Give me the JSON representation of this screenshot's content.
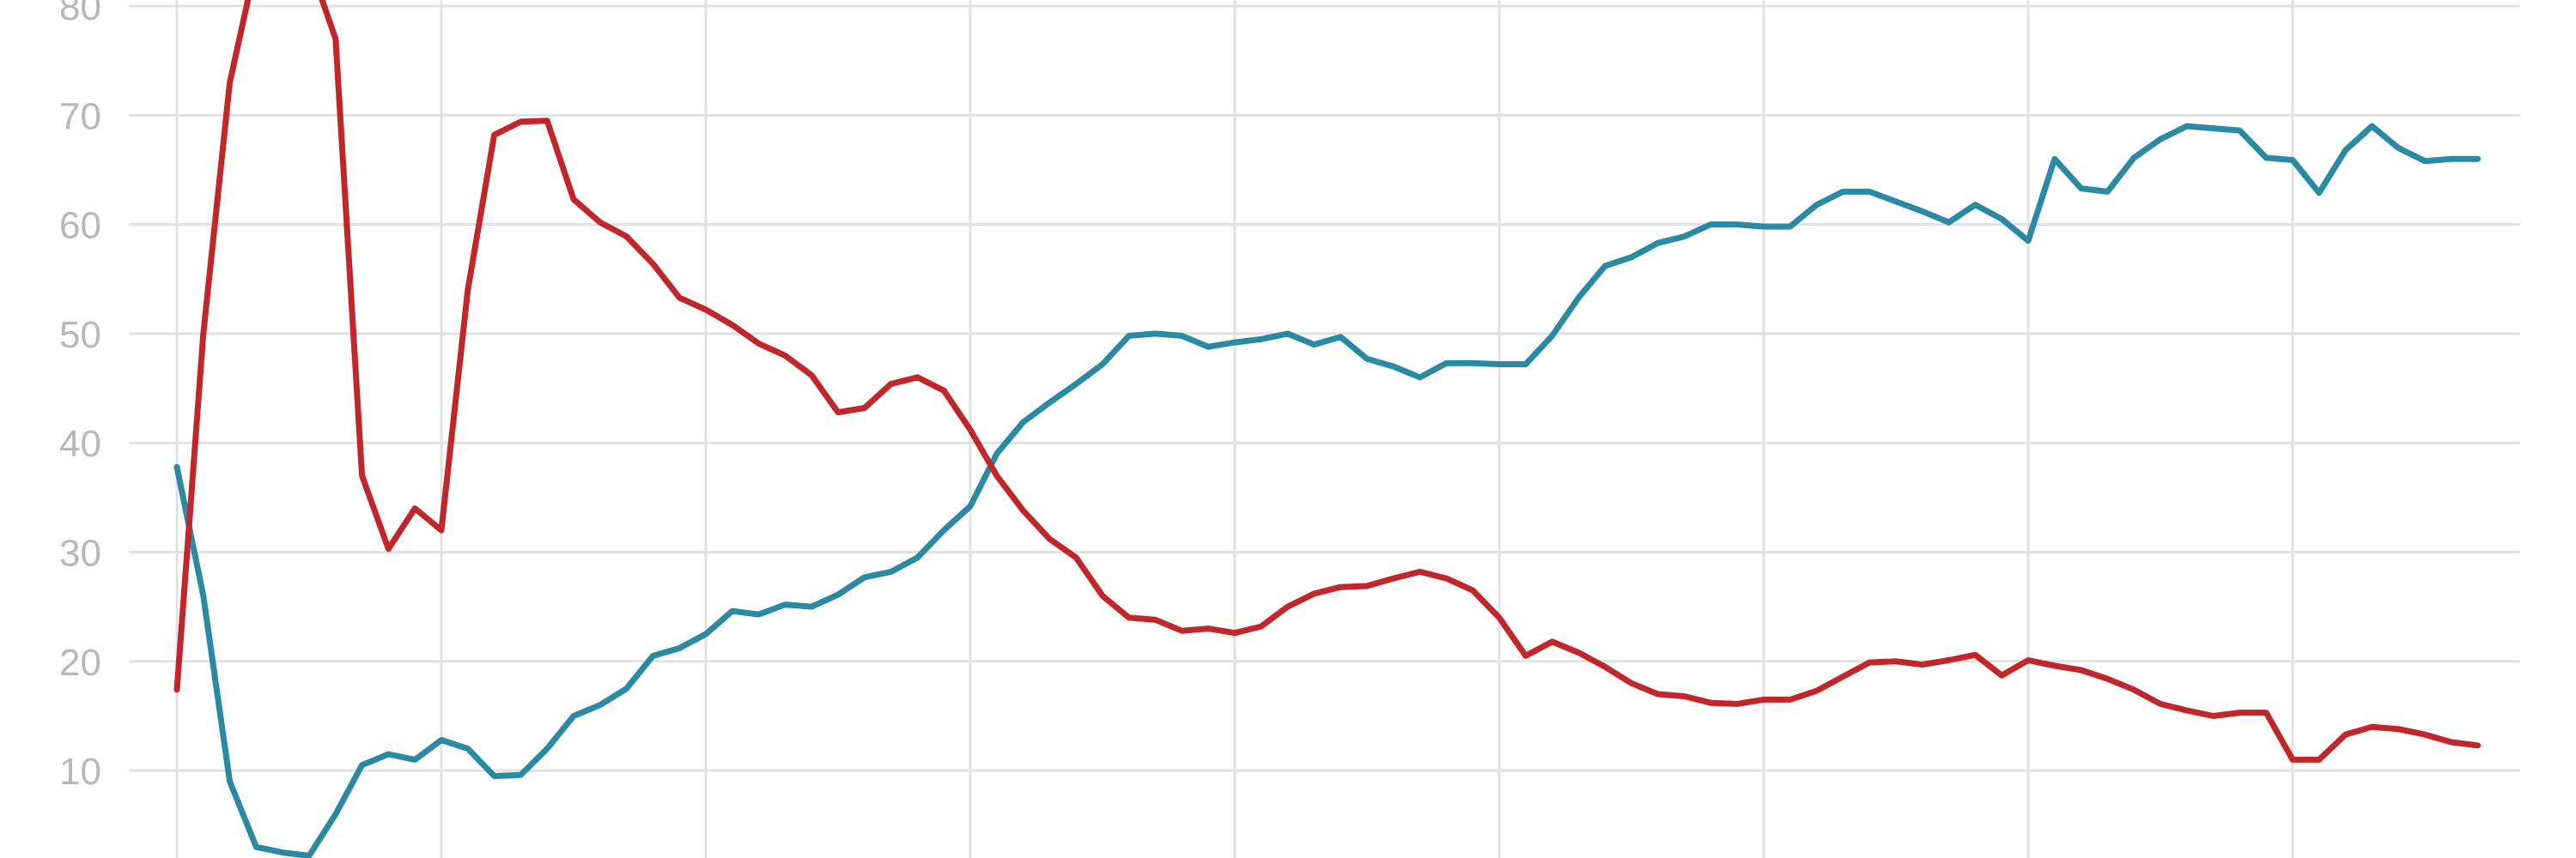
{
  "chart_data": {
    "type": "line",
    "title": "",
    "xlabel": "",
    "ylabel": "",
    "ylim": [
      2,
      80
    ],
    "xlim": [
      0,
      87
    ],
    "y_ticks": [
      "10",
      "20",
      "30",
      "40",
      "50",
      "60",
      "70",
      "80"
    ],
    "x_gridlines": [
      0,
      10,
      20,
      30,
      40,
      50,
      60,
      70,
      80
    ],
    "grid": true,
    "legend": "none",
    "x": [
      0,
      1,
      2,
      3,
      4,
      5,
      6,
      7,
      8,
      9,
      10,
      11,
      12,
      13,
      14,
      15,
      16,
      17,
      18,
      19,
      20,
      21,
      22,
      23,
      24,
      25,
      26,
      27,
      28,
      29,
      30,
      31,
      32,
      33,
      34,
      35,
      36,
      37,
      38,
      39,
      40,
      41,
      42,
      43,
      44,
      45,
      46,
      47,
      48,
      49,
      50,
      51,
      52,
      53,
      54,
      55,
      56,
      57,
      58,
      59,
      60,
      61,
      62,
      63,
      64,
      65,
      66,
      67,
      68,
      69,
      70,
      71,
      72,
      73,
      74,
      75,
      76,
      77,
      78,
      79,
      80,
      81,
      82,
      83,
      84,
      85,
      86,
      87
    ],
    "series": [
      {
        "color": "#2a89a3",
        "values": [
          37.8,
          26,
          9,
          3,
          2.5,
          2.2,
          6,
          10.5,
          11.5,
          11,
          12.8,
          12,
          9.5,
          9.6,
          12,
          15,
          16,
          17.5,
          20.5,
          21.2,
          22.5,
          24.6,
          24.3,
          25.2,
          25,
          26.1,
          27.7,
          28.2,
          29.5,
          32,
          34.2,
          39,
          41.9,
          43.7,
          45.4,
          47.2,
          49.8,
          50,
          49.8,
          48.8,
          49.2,
          49.5,
          50,
          49,
          49.7,
          47.7,
          47,
          46,
          47.3,
          47.3,
          47.2,
          47.2,
          49.8,
          53.3,
          56.2,
          57,
          58.3,
          58.9,
          60,
          60,
          59.8,
          59.8,
          61.8,
          63,
          63,
          62.1,
          61.2,
          60.2,
          61.8,
          60.5,
          58.5,
          66,
          63.3,
          63,
          66.1,
          67.8,
          69,
          68.8,
          68.6,
          66.1,
          65.9,
          62.9,
          66.8,
          69,
          67,
          65.8,
          66,
          66
        ]
      },
      {
        "color": "#c0262a",
        "values": [
          17.4,
          50,
          73,
          84,
          85,
          84,
          77,
          37,
          30.3,
          34,
          32,
          54,
          68.2,
          69.4,
          69.5,
          62.3,
          60.2,
          58.9,
          56.4,
          53.3,
          52.2,
          50.8,
          49.1,
          48,
          46.2,
          42.8,
          43.2,
          45.4,
          46,
          44.8,
          41.2,
          37,
          33.8,
          31.2,
          29.5,
          26,
          24,
          23.8,
          22.8,
          23,
          22.6,
          23.2,
          25,
          26.2,
          26.8,
          26.9,
          27.6,
          28.2,
          27.6,
          26.5,
          24,
          20.5,
          21.8,
          20.8,
          19.5,
          18,
          17,
          16.8,
          16.2,
          16.1,
          16.5,
          16.5,
          17.3,
          18.6,
          19.9,
          20,
          19.7,
          20.1,
          20.6,
          18.7,
          20.1,
          19.6,
          19.2,
          18.4,
          17.4,
          16.1,
          15.5,
          15,
          15.3,
          15.3,
          11,
          11,
          13.3,
          14,
          13.8,
          13.3,
          12.6,
          12.3
        ]
      }
    ]
  }
}
